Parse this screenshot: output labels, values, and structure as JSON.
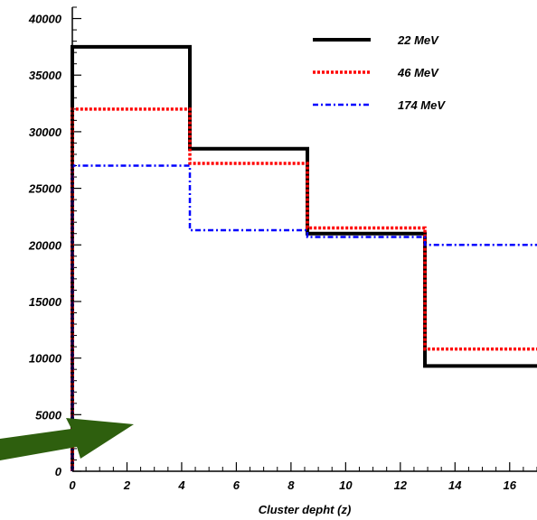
{
  "chart_data": {
    "type": "line",
    "step": true,
    "xlabel": "Cluster depht (z)",
    "ylabel": "",
    "title": "",
    "xlim": [
      0,
      17
    ],
    "ylim": [
      0,
      41000
    ],
    "x_ticks": [
      0,
      2,
      4,
      6,
      8,
      10,
      12,
      14,
      16
    ],
    "y_ticks": [
      0,
      5000,
      10000,
      15000,
      20000,
      25000,
      30000,
      35000,
      40000
    ],
    "bin_edges": [
      0,
      4.3,
      8.6,
      12.9,
      17
    ],
    "legend_position": "top-right",
    "series": [
      {
        "name": "22 MeV",
        "values": [
          37500,
          28500,
          21000,
          9300
        ],
        "color": "#000000",
        "style": "solid"
      },
      {
        "name": "46 MeV",
        "values": [
          32000,
          27200,
          21500,
          10800
        ],
        "color": "#ff0000",
        "style": "dotted"
      },
      {
        "name": "174 MeV",
        "values": [
          27000,
          21300,
          20700,
          20000
        ],
        "color": "#0000ff",
        "style": "dash-dot"
      }
    ],
    "annotation": {
      "kind": "arrow",
      "color": "#2e5f0e",
      "icon": "arrow-icon"
    }
  }
}
